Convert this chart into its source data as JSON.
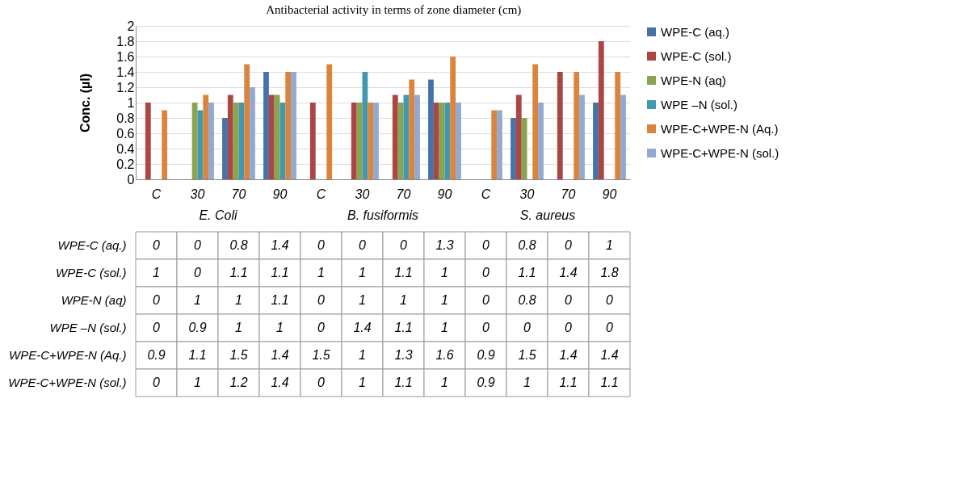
{
  "chart_data": {
    "type": "bar",
    "title": "Antibacterial activity in terms of zone diameter (cm)",
    "ylabel": "Conc. (µl)",
    "categories": [
      "C",
      "30",
      "70",
      "90",
      "C",
      "30",
      "70",
      "90",
      "C",
      "30",
      "70",
      "90"
    ],
    "annotations": [
      "E. Coli",
      "B. fusiformis",
      "S. aureus"
    ],
    "series": [
      {
        "name": "WPE-C (aq.)",
        "color": "#4572a7",
        "values": [
          0,
          0,
          0.8,
          1.4,
          0,
          0,
          0,
          1.3,
          0,
          0.8,
          0,
          1
        ]
      },
      {
        "name": "WPE-C (sol.)",
        "color": "#aa4643",
        "values": [
          1,
          0,
          1.1,
          1.1,
          1,
          1,
          1.1,
          1,
          0,
          1.1,
          1.4,
          1.8
        ]
      },
      {
        "name": "WPE-N (aq)",
        "color": "#89a54e",
        "values": [
          0,
          1,
          1,
          1.1,
          0,
          1,
          1,
          1,
          0,
          0.8,
          0,
          0
        ]
      },
      {
        "name": "WPE –N  (sol.)",
        "color": "#4198af",
        "values": [
          0,
          0.9,
          1,
          1,
          0,
          1.4,
          1.1,
          1,
          0,
          0,
          0,
          0
        ]
      },
      {
        "name": "WPE-C+WPE-N (Aq.)",
        "color": "#db843d",
        "values": [
          0.9,
          1.1,
          1.5,
          1.4,
          1.5,
          1,
          1.3,
          1.6,
          0.9,
          1.5,
          1.4,
          1.4
        ]
      },
      {
        "name": "WPE-C+WPE-N  (sol.)",
        "color": "#93a9cf",
        "values": [
          0,
          1,
          1.2,
          1.4,
          0,
          1,
          1.1,
          1,
          0.9,
          1,
          1.1,
          1.1
        ]
      }
    ],
    "ylim": [
      0,
      2
    ],
    "yticks": [
      0,
      0.2,
      0.4,
      0.6,
      0.8,
      1,
      1.2,
      1.4,
      1.6,
      1.8,
      2
    ],
    "grid": "y",
    "legend": "right",
    "data_labels": true
  }
}
